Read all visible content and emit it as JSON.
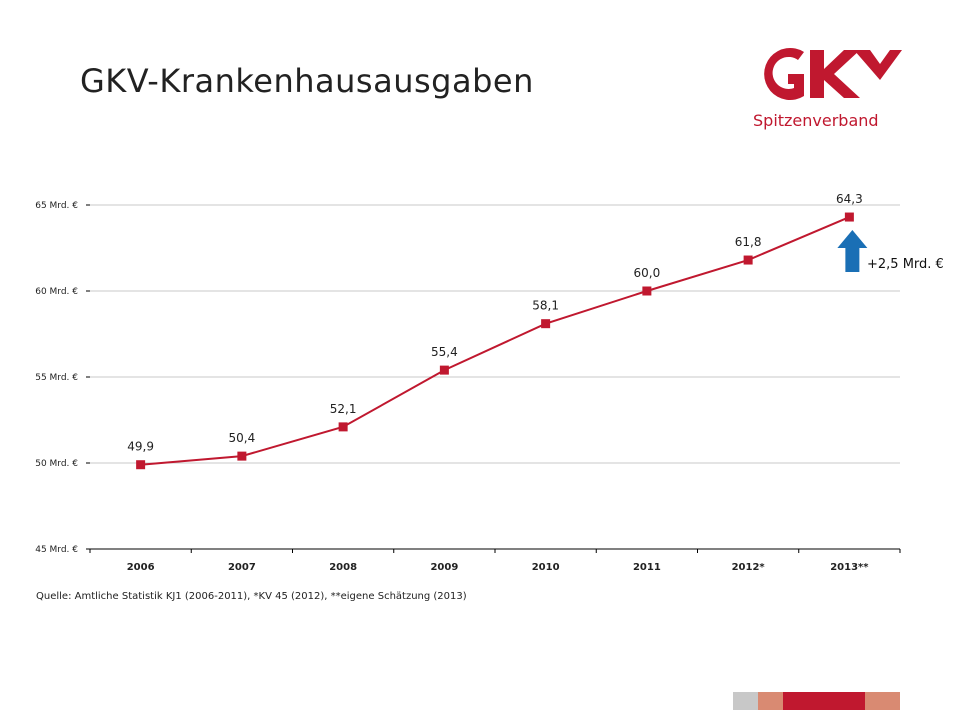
{
  "header": {
    "title": "GKV-Krankenhausausgaben",
    "logo_text": "GKV",
    "logo_subtitle": "Spitzenverband"
  },
  "chart_data": {
    "type": "line",
    "title": "GKV-Krankenhausausgaben",
    "categories": [
      "2006",
      "2007",
      "2008",
      "2009",
      "2010",
      "2011",
      "2012*",
      "2013**"
    ],
    "series": [
      {
        "name": "Krankenhausausgaben",
        "values": [
          49.9,
          50.4,
          52.1,
          55.4,
          58.1,
          60.0,
          61.8,
          64.3
        ],
        "labels": [
          "49,9",
          "50,4",
          "52,1",
          "55,4",
          "58,1",
          "60,0",
          "61,8",
          "64,3"
        ]
      }
    ],
    "ylim": [
      45,
      65
    ],
    "yticks": [
      45,
      50,
      55,
      60,
      65
    ],
    "ytick_labels": [
      "45 Mrd. €",
      "50 Mrd. €",
      "55 Mrd. €",
      "60 Mrd. €",
      "65 Mrd. €"
    ],
    "grid": true,
    "annotation": "+2,5 Mrd. €",
    "colors": {
      "line": "#c0182f",
      "arrow": "#1a6fb5",
      "grid": "#c8c8c8"
    }
  },
  "footer": {
    "source": "Quelle: Amtliche Statistik KJ1 (2006-2011), *KV 45 (2012), **eigene Schätzung (2013)"
  }
}
